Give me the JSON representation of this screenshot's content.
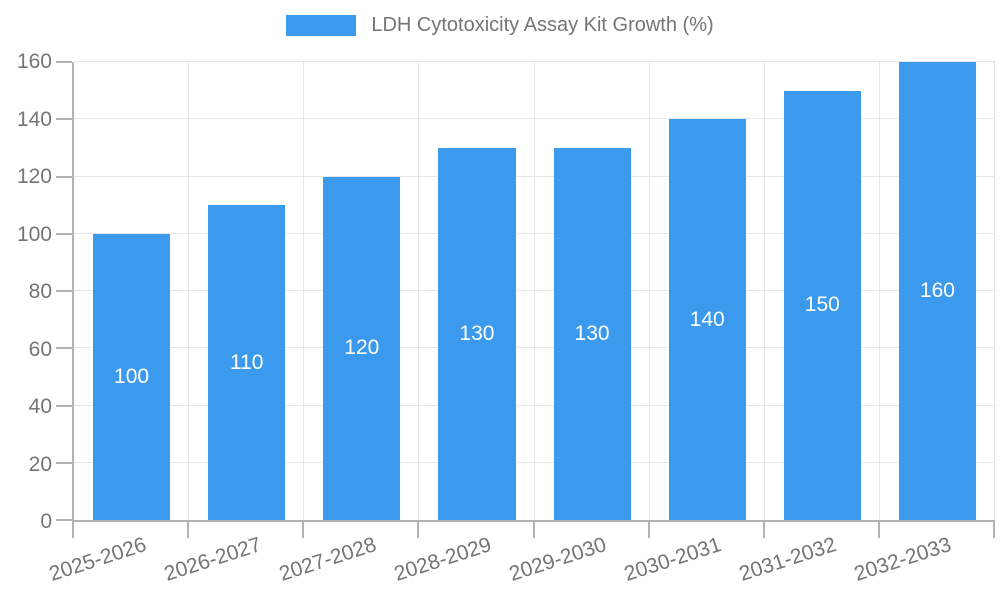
{
  "chart_data": {
    "type": "bar",
    "title": "LDH Cytotoxicity Assay Kit Growth (%)",
    "categories": [
      "2025-2026",
      "2026-2027",
      "2027-2028",
      "2028-2029",
      "2029-2030",
      "2030-2031",
      "2031-2032",
      "2032-2033"
    ],
    "values": [
      100,
      110,
      120,
      130,
      130,
      140,
      150,
      160
    ],
    "xlabel": "",
    "ylabel": "",
    "ylim": [
      0,
      160
    ],
    "ytick_step": 20,
    "grid": true,
    "legend_position": "top-center",
    "x_tick_rotation_deg": -18,
    "value_labels": "inside-center",
    "colors": {
      "bar": "#3b99ee",
      "value_label": "#ffffff",
      "axis_text": "#757575",
      "legend_text": "#757575",
      "gridline": "#e6e6e6",
      "axis_line": "#b3b3b3",
      "background": "#ffffff"
    }
  }
}
